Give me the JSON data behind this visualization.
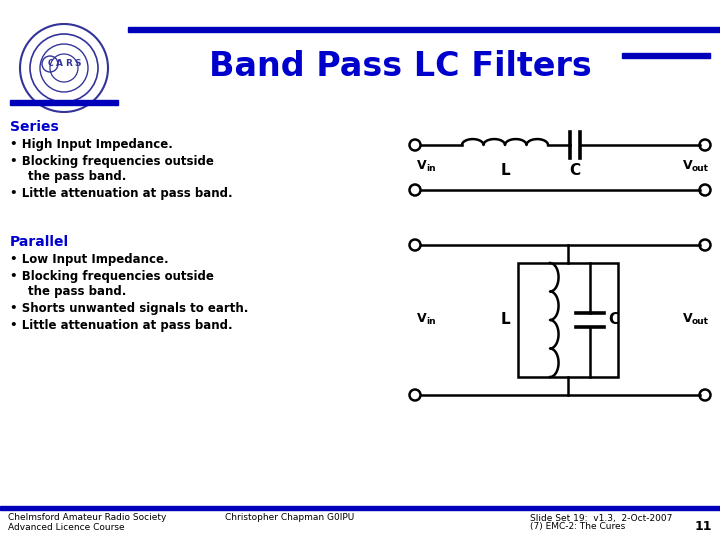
{
  "title": "Band Pass LC Filters",
  "title_color": "#0000CC",
  "title_fontsize": 24,
  "bg_color": "#FFFFFF",
  "bar_color": "#0000BB",
  "section_color": "#0000CC",
  "bullet_color": "#000000",
  "circuit_color": "#000000",
  "footer_left1": "Chelmsford Amateur Radio Society",
  "footer_left2": "Advanced Licence Course",
  "footer_mid": "Christopher Chapman G0IPU",
  "footer_right1": "Slide Set 19:  v1.3,  2-Oct-2007",
  "footer_right2": "(7) EMC-2: The Cures",
  "footer_num": "11",
  "footer_color": "#000000",
  "logo_color": "#333399"
}
